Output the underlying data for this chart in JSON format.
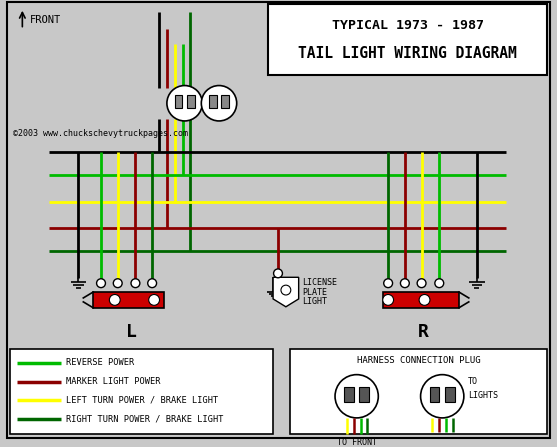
{
  "title_line1": "TYPICAL 1973 - 1987",
  "title_line2": "TAIL LIGHT WIRING DIAGRAM",
  "copyright": "©2003 www.chuckschevytruckpages.com",
  "front_label": "FRONT",
  "left_label": "L",
  "right_label": "R",
  "license_label_lines": [
    "LICENSE",
    "PLATE",
    "LIGHT"
  ],
  "harness_title": "HARNESS CONNECTION PLUG",
  "to_front": "TO FRONT",
  "to_lights": "TO\nLIGHTS",
  "colors": {
    "green_light": "#00bb00",
    "green_dark": "#006600",
    "dark_red": "#8b0000",
    "yellow": "#ffff00",
    "black": "#000000",
    "white": "#ffffff",
    "red_bar": "#cc0000",
    "bg": "#c8c8c8",
    "gray_pin": "#888888"
  },
  "legend": [
    {
      "color": "#00bb00",
      "label": "REVERSE POWER"
    },
    {
      "color": "#8b0000",
      "label": "MARKER LIGHT POWER"
    },
    {
      "color": "#ffff00",
      "label": "LEFT TURN POWER / BRAKE LIGHT"
    },
    {
      "color": "#006600",
      "label": "RIGHT TURN POWER / BRAKE LIGHT"
    }
  ]
}
